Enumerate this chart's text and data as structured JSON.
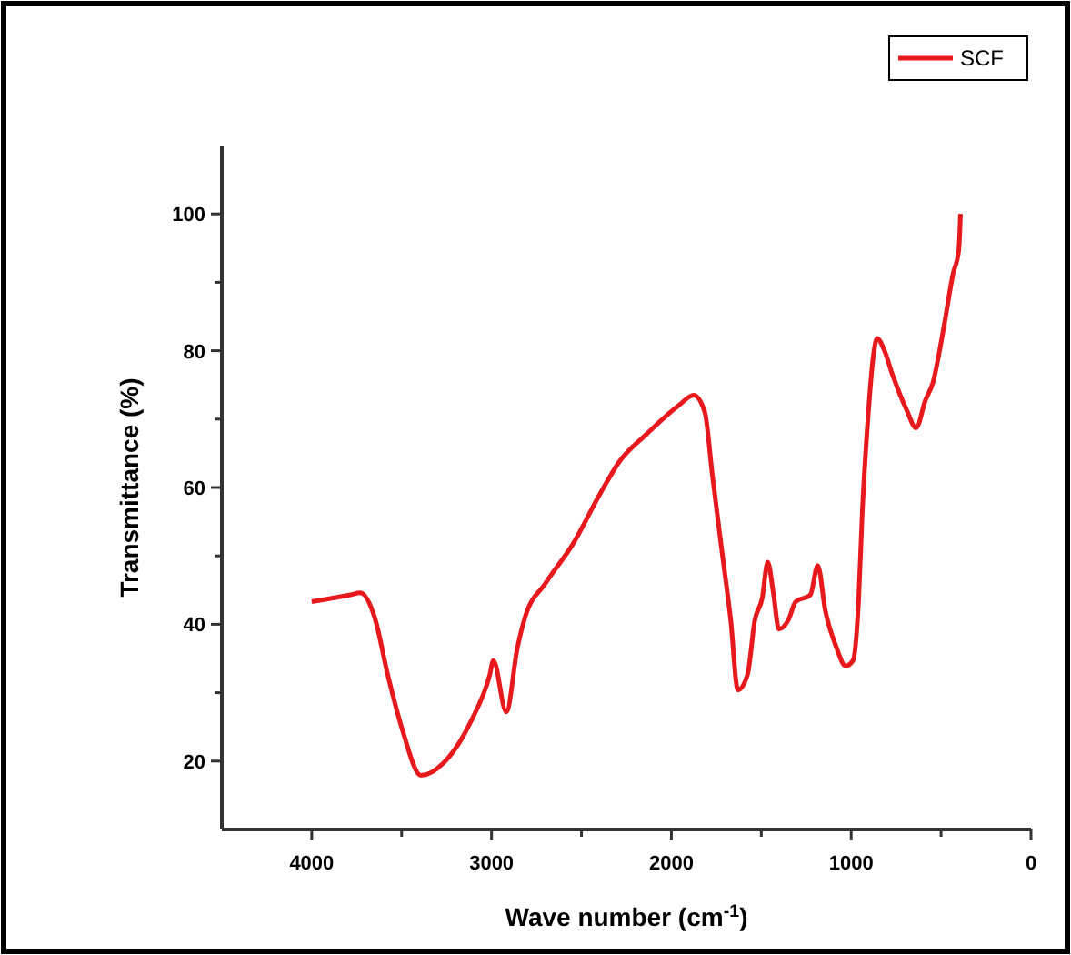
{
  "chart_data": {
    "type": "line",
    "xlabel": "Wave number (cm$^{-1}$)",
    "ylabel": "Transmittance (%)",
    "xlim": [
      4500,
      0
    ],
    "xticks": [
      4000,
      {
        "value": 3500,
        "label": null
      },
      3000,
      {
        "value": 2500,
        "label": null
      },
      2000,
      {
        "value": 1500,
        "label": null
      },
      1000,
      {
        "value": 500,
        "label": null
      },
      0
    ],
    "ylim": [
      10,
      110
    ],
    "yticks": [
      20,
      {
        "value": 30,
        "label": null
      },
      40,
      {
        "value": 50,
        "label": null
      },
      60,
      {
        "value": 70,
        "label": null
      },
      80,
      {
        "value": 90,
        "label": null
      },
      100
    ],
    "legend": "top right",
    "grid": false,
    "marker": "none",
    "line_style": "solid",
    "series": [
      {
        "name": "SCF",
        "color": "#e8191c",
        "x": [
          4000,
          3784,
          3730,
          3650,
          3577,
          3495,
          3392,
          3268,
          3113,
          3010,
          2990,
          2918,
          2856,
          2814,
          2700,
          2546,
          2392,
          2289,
          2134,
          1959,
          1876,
          1814,
          1773,
          1722,
          1670,
          1630,
          1577,
          1536,
          1495,
          1464,
          1433,
          1402,
          1350,
          1309,
          1227,
          1186,
          1144,
          1082,
          1031,
          990,
          959,
          938,
          907,
          876,
          856,
          815,
          773,
          691,
          639,
          588,
          546,
          485,
          433,
          402,
          392
        ],
        "values": [
          43.3,
          44.3,
          44.6,
          41,
          32.6,
          24.5,
          17.9,
          19.7,
          25.9,
          32.6,
          34.7,
          27.2,
          36.6,
          41,
          46,
          51.8,
          59.3,
          63.8,
          67.9,
          72,
          73.5,
          71,
          62,
          51.3,
          40.6,
          30.4,
          32.6,
          40.6,
          43.8,
          49.1,
          44.6,
          39.3,
          40.6,
          43.3,
          44.3,
          48.6,
          42,
          36.6,
          33.9,
          34.7,
          43.3,
          56.6,
          70,
          79.4,
          81.8,
          80,
          76.7,
          71.3,
          68.7,
          72.7,
          75.3,
          83.4,
          91.3,
          94.6,
          100
        ]
      }
    ]
  }
}
